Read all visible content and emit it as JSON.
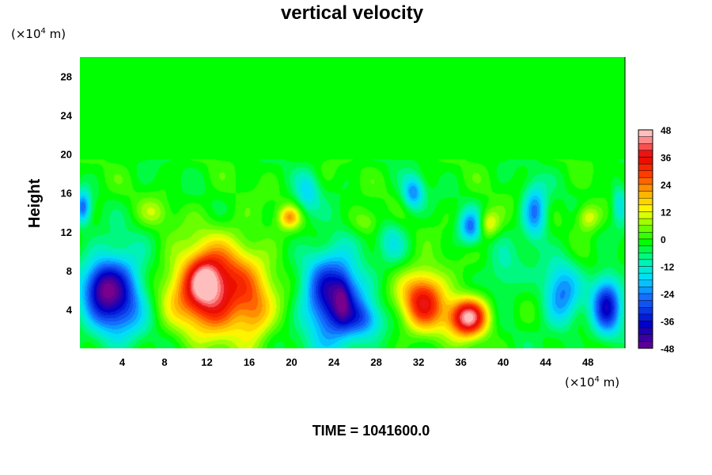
{
  "chart_data": {
    "type": "heatmap",
    "title": "vertical velocity",
    "ylabel": "Height",
    "x_unit": {
      "prefix": "(×10",
      "exp": "4",
      "suffix": " m)"
    },
    "y_unit": {
      "prefix": "(×10",
      "exp": "4",
      "suffix": " m)"
    },
    "xlim": [
      0,
      51.5
    ],
    "ylim": [
      0,
      30
    ],
    "x_ticks": [
      4,
      8,
      12,
      16,
      20,
      24,
      28,
      32,
      36,
      40,
      44,
      48
    ],
    "y_ticks": [
      4,
      8,
      12,
      16,
      20,
      24,
      28
    ],
    "colorbar": {
      "min": -48,
      "max": 48,
      "ticks": [
        48,
        36,
        24,
        12,
        0,
        -12,
        -24,
        -36,
        -48
      ]
    },
    "background_value": 0,
    "features": [
      {
        "x": 3.2,
        "y": 5.5,
        "sx": 2.0,
        "sy": 3.0,
        "value": -40
      },
      {
        "x": 2.0,
        "y": 6.5,
        "sx": 1.0,
        "sy": 1.5,
        "value": -12
      },
      {
        "x": 12.0,
        "y": 6.0,
        "sx": 2.5,
        "sy": 2.8,
        "value": 34
      },
      {
        "x": 11.8,
        "y": 7.0,
        "sx": 1.0,
        "sy": 1.6,
        "value": 16
      },
      {
        "x": 14.5,
        "y": 6.5,
        "sx": 3.2,
        "sy": 4.0,
        "value": 14
      },
      {
        "x": 16.5,
        "y": 3.5,
        "sx": 1.1,
        "sy": 2.0,
        "value": 14
      },
      {
        "x": 24.0,
        "y": 5.0,
        "sx": 2.0,
        "sy": 3.5,
        "value": -40
      },
      {
        "x": 24.8,
        "y": 5.0,
        "sx": 0.5,
        "sy": 1.6,
        "value": -10
      },
      {
        "x": 27.0,
        "y": 3.0,
        "sx": 1.2,
        "sy": 1.2,
        "value": -14
      },
      {
        "x": 32.5,
        "y": 5.0,
        "sx": 1.5,
        "sy": 2.2,
        "value": 36
      },
      {
        "x": 36.7,
        "y": 3.2,
        "sx": 1.3,
        "sy": 1.4,
        "value": 48
      },
      {
        "x": 45.5,
        "y": 5.5,
        "sx": 1.2,
        "sy": 2.5,
        "value": -22
      },
      {
        "x": 49.8,
        "y": 4.5,
        "sx": 1.0,
        "sy": 2.2,
        "value": -34
      },
      {
        "x": 40.0,
        "y": 7.5,
        "sx": 1.2,
        "sy": 2.0,
        "value": -10
      },
      {
        "x": 19.8,
        "y": 13.5,
        "sx": 0.7,
        "sy": 0.8,
        "value": 20
      },
      {
        "x": 38.5,
        "y": 12.8,
        "sx": 0.8,
        "sy": 1.0,
        "value": 18
      },
      {
        "x": 48.0,
        "y": 13.5,
        "sx": 0.8,
        "sy": 1.0,
        "value": 15
      },
      {
        "x": 37.0,
        "y": 12.5,
        "sx": 0.8,
        "sy": 1.2,
        "value": -25
      },
      {
        "x": 43.0,
        "y": 14.0,
        "sx": 0.8,
        "sy": 2.0,
        "value": -24
      },
      {
        "x": 31.5,
        "y": 16.0,
        "sx": 0.7,
        "sy": 1.2,
        "value": -22
      },
      {
        "x": 21.5,
        "y": 16.0,
        "sx": 0.8,
        "sy": 1.5,
        "value": -14
      },
      {
        "x": 0.3,
        "y": 14.5,
        "sx": 0.5,
        "sy": 1.2,
        "value": -24
      },
      {
        "x": 51.0,
        "y": 15.0,
        "sx": 0.5,
        "sy": 1.5,
        "value": -14
      },
      {
        "x": 27.0,
        "y": 13.0,
        "sx": 1.0,
        "sy": 1.0,
        "value": 10
      },
      {
        "x": 7.0,
        "y": 14.0,
        "sx": 1.0,
        "sy": 1.0,
        "value": 8
      },
      {
        "x": 29.5,
        "y": 11.0,
        "sx": 0.9,
        "sy": 1.6,
        "value": -10
      }
    ]
  },
  "footer": {
    "time_label": "TIME = 1041600.0"
  }
}
